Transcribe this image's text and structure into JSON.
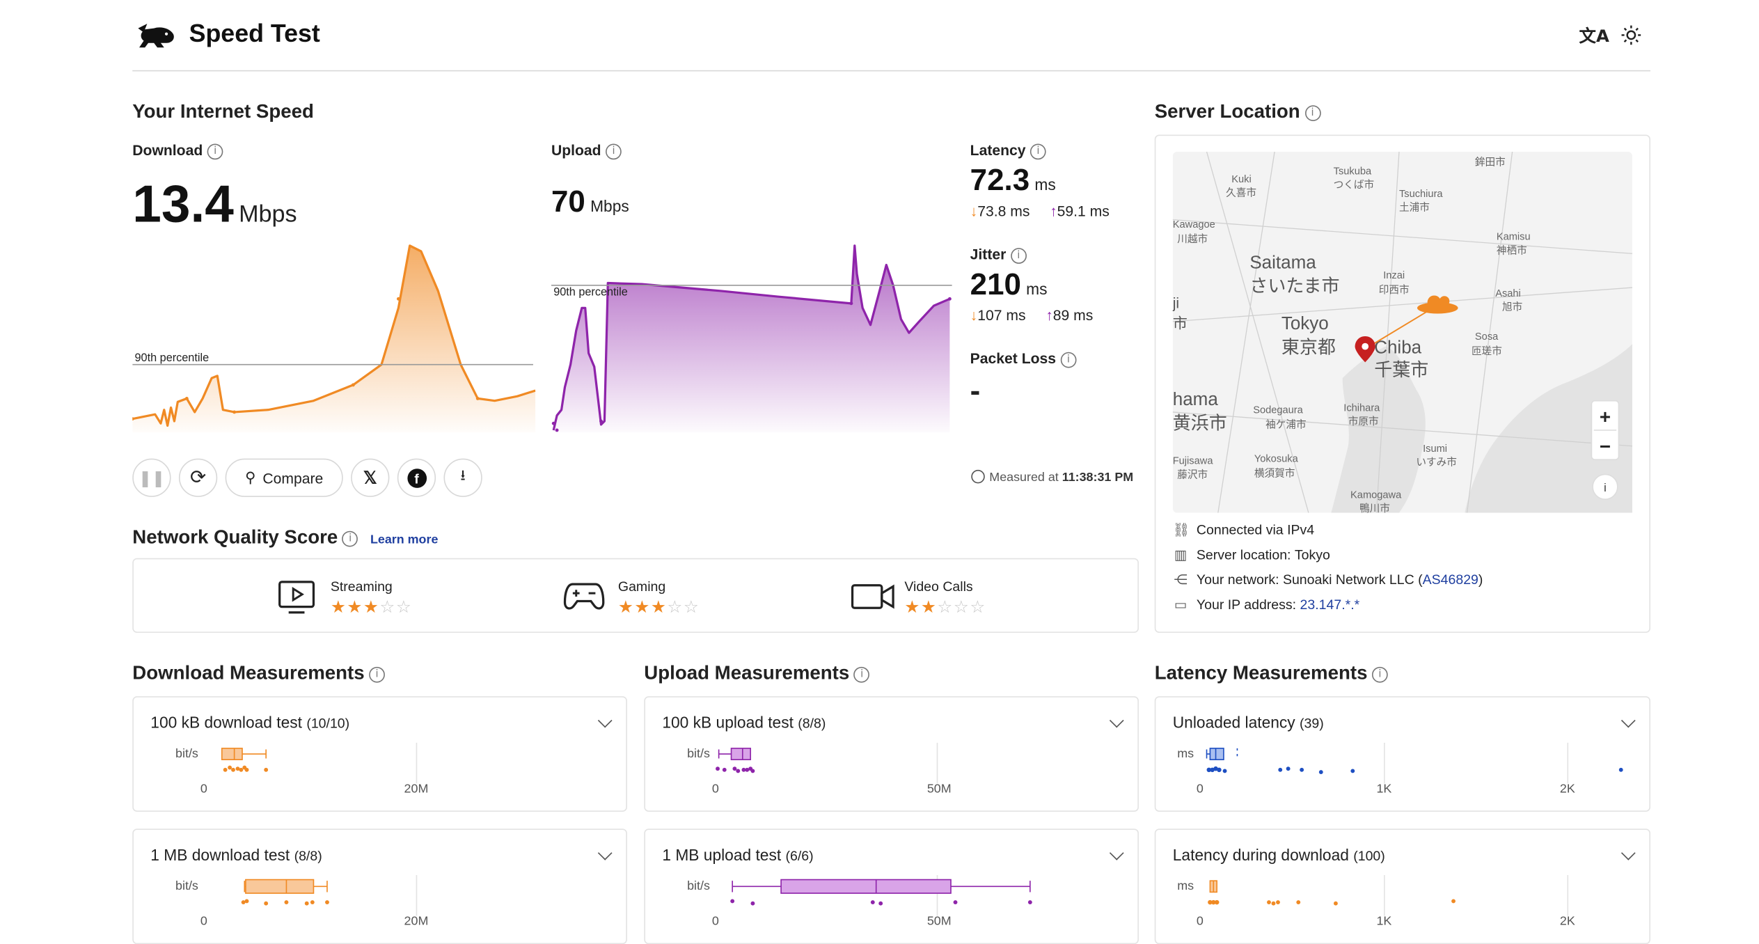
{
  "header": {
    "title": "Speed Test",
    "translate_icon": "translate-icon",
    "theme_icon": "sun-icon"
  },
  "speed": {
    "section_title": "Your Internet Speed",
    "download": {
      "label": "Download",
      "value": "13.4",
      "unit": "Mbps",
      "percentile_label": "90th percentile"
    },
    "upload": {
      "label": "Upload",
      "value": "70",
      "unit": "Mbps",
      "percentile_label": "90th percentile"
    },
    "latency": {
      "label": "Latency",
      "value": "72.3",
      "unit": "ms",
      "down": "73.8 ms",
      "up": "59.1 ms"
    },
    "jitter": {
      "label": "Jitter",
      "value": "210",
      "unit": "ms",
      "down": "107 ms",
      "up": "89 ms"
    },
    "packet_loss": {
      "label": "Packet Loss",
      "value": "-"
    },
    "measured_at_label": "Measured at",
    "measured_at_time": "11:38:31 PM"
  },
  "actions": {
    "compare_label": "Compare"
  },
  "quality": {
    "title": "Network Quality Score",
    "learn_more": "Learn more",
    "items": [
      {
        "label": "Streaming",
        "stars": 3,
        "icon": "monitor-play-icon"
      },
      {
        "label": "Gaming",
        "stars": 3,
        "icon": "gamepad-icon"
      },
      {
        "label": "Video Calls",
        "stars": 2,
        "icon": "video-camera-icon"
      }
    ]
  },
  "server": {
    "title": "Server Location",
    "map_labels": {
      "kuki": "Kuki",
      "kuki_jp": "久喜市",
      "tsukuba": "Tsukuba",
      "tsukuba_jp": "つくば市",
      "tsuchiura": "Tsuchiura",
      "tsuchiura_jp": "土浦市",
      "hokota": "鉾田市",
      "kawagoe": "Kawagoe",
      "kawagoe_jp": "川越市",
      "kamisu": "Kamisu",
      "kamisu_jp": "神栖市",
      "saitama": "Saitama",
      "saitama_jp": "さいたま市",
      "inzai": "Inzai",
      "inzai_jp": "印西市",
      "asahi": "Asahi",
      "asahi_jp": "旭市",
      "tokyo": "Tokyo",
      "tokyo_jp": "東京都",
      "chiba": "Chiba",
      "chiba_jp": "千葉市",
      "sosa": "Sosa",
      "sosa_jp": "匝瑳市",
      "yokohama": "hama",
      "yokohama_jp": "黄浜市",
      "sodegaura": "Sodegaura",
      "sodegaura_jp": "袖ケ浦市",
      "ichihara": "Ichihara",
      "ichihara_jp": "市原市",
      "fujisawa": "Fujisawa",
      "fujisawa_jp": "藤沢市",
      "yokosuka": "Yokosuka",
      "yokosuka_jp": "横須賀市",
      "isumi": "Isumi",
      "isumi_jp": "いすみ市",
      "kamogawa": "Kamogawa",
      "kamogawa_jp": "鴨川市",
      "edge1": "ji",
      "edge2": "市"
    },
    "connected_label": "Connected via",
    "connected_value": "IPv4",
    "location_label": "Server location:",
    "location_value": "Tokyo",
    "network_label": "Your network:",
    "network_value": "Sunoaki Network LLC (",
    "asn": "AS46829",
    "network_close": ")",
    "ip_label": "Your IP address:",
    "ip_value": "23.147.*.*"
  },
  "download_meas": {
    "title": "Download Measurements",
    "tests": [
      {
        "name": "100 kB download test",
        "count": "(10/10)",
        "unit": "bit/s",
        "ticks": [
          "0",
          "20M"
        ]
      },
      {
        "name": "1 MB download test",
        "count": "(8/8)",
        "unit": "bit/s",
        "ticks": [
          "0",
          "20M"
        ]
      }
    ]
  },
  "upload_meas": {
    "title": "Upload Measurements",
    "tests": [
      {
        "name": "100 kB upload test",
        "count": "(8/8)",
        "unit": "bit/s",
        "ticks": [
          "0",
          "50M"
        ]
      },
      {
        "name": "1 MB upload test",
        "count": "(6/6)",
        "unit": "bit/s",
        "ticks": [
          "0",
          "50M"
        ]
      }
    ]
  },
  "latency_meas": {
    "title": "Latency Measurements",
    "tests": [
      {
        "name": "Unloaded latency",
        "count": "(39)",
        "unit": "ms",
        "ticks": [
          "0",
          "1K",
          "2K"
        ]
      },
      {
        "name": "Latency during download",
        "count": "(100)",
        "unit": "ms",
        "ticks": [
          "0",
          "1K",
          "2K"
        ]
      }
    ]
  },
  "colors": {
    "download": "#f08a24",
    "upload": "#8e24aa",
    "latency": "#1e4fc2",
    "link": "#2040a0"
  }
}
